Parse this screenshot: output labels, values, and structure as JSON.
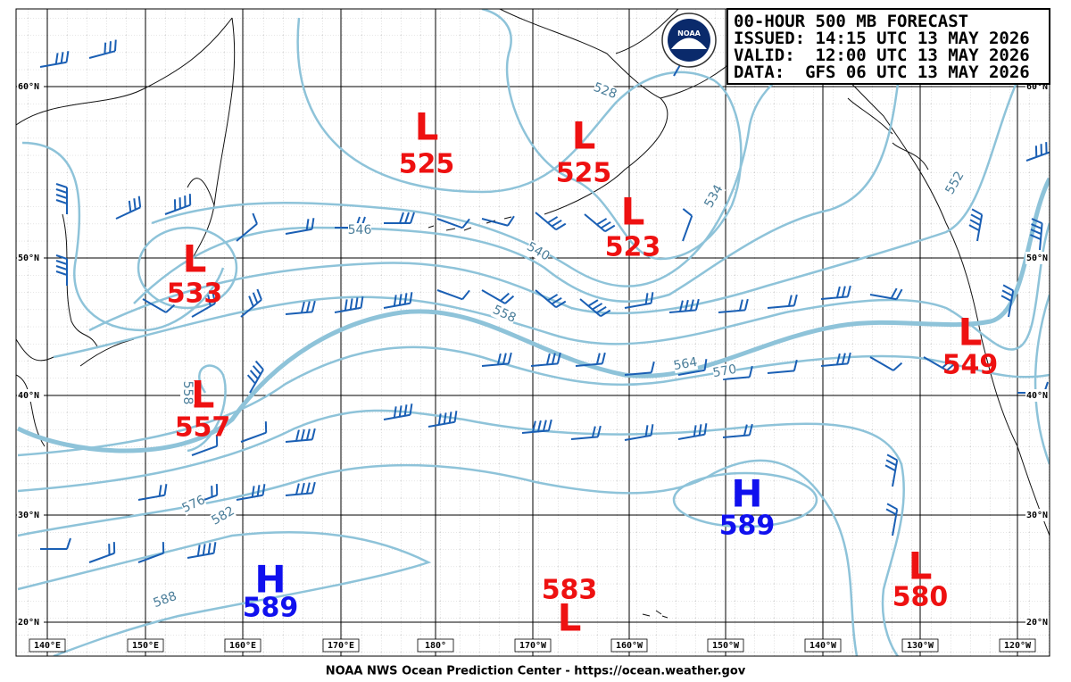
{
  "header": {
    "title": "00-HOUR 500 MB FORECAST",
    "issued": "ISSUED: 14:15 UTC 13 MAY 2026",
    "valid": "VALID:  12:00 UTC 13 MAY 2026",
    "data": "DATA:  GFS 06 UTC 13 MAY 2026"
  },
  "logo": "NOAA",
  "centers": [
    {
      "type": "L",
      "value": "525"
    },
    {
      "type": "L",
      "value": "525"
    },
    {
      "type": "L",
      "value": "523"
    },
    {
      "type": "L",
      "value": "533"
    },
    {
      "type": "L",
      "value": "557"
    },
    {
      "type": "L",
      "value": "549"
    },
    {
      "type": "H",
      "value": "589"
    },
    {
      "type": "H",
      "value": "589"
    },
    {
      "type": "L",
      "value": "583"
    },
    {
      "type": "L",
      "value": "580"
    }
  ],
  "contour_labels": [
    "546",
    "540",
    "558",
    "564",
    "570",
    "528",
    "534",
    "552",
    "576",
    "582",
    "588",
    "558"
  ],
  "latitudes": [
    "60°N",
    "50°N",
    "40°N",
    "30°N",
    "20°N"
  ],
  "longitudes": [
    "140°E",
    "150°E",
    "160°E",
    "170°E",
    "180°",
    "170°W",
    "160°W",
    "150°W",
    "140°W",
    "130°W",
    "120°W"
  ],
  "footer": "NOAA NWS Ocean Prediction Center - https://ocean.weather.gov"
}
